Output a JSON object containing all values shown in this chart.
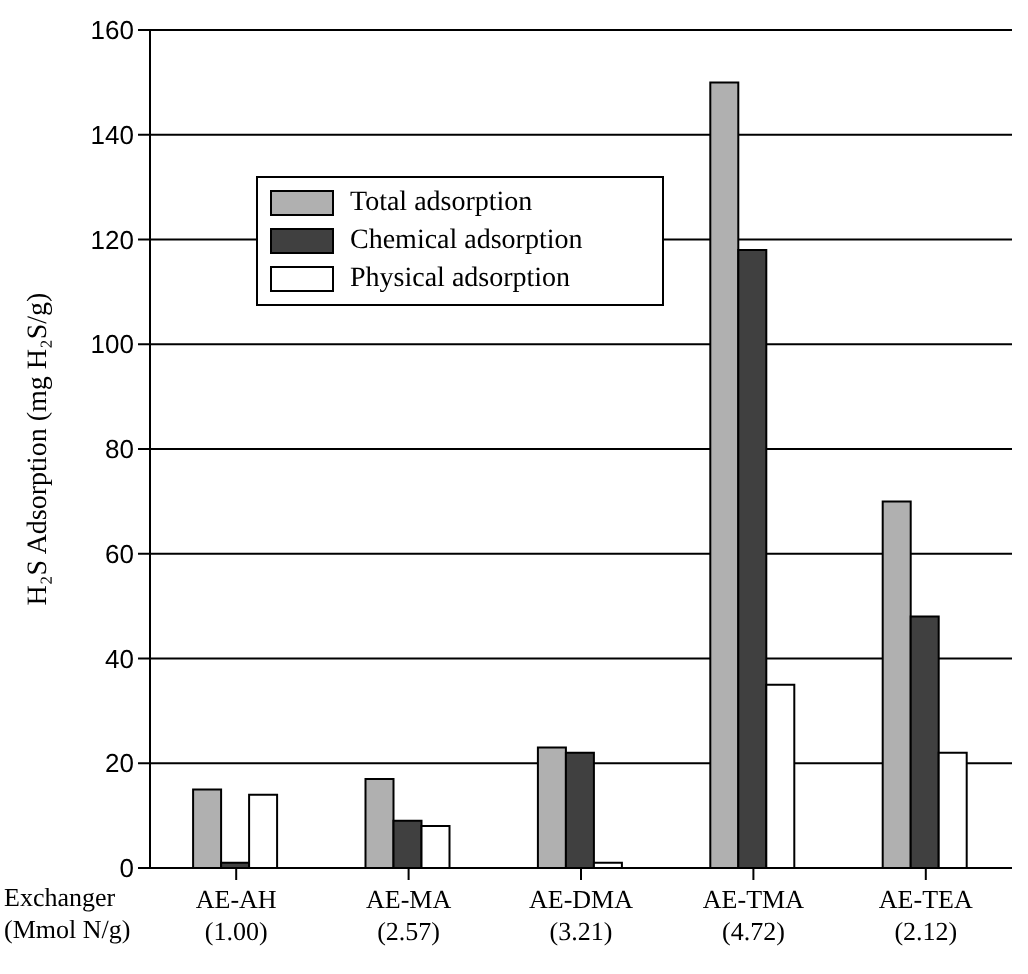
{
  "chart_data": {
    "type": "bar",
    "xlabel": "Exchanger (Mmol N/g)",
    "ylabel": "H₂S Adsorption (mg H₂S/g)",
    "categories": [
      "AE-AH (1.00)",
      "AE-MA (2.57)",
      "AE-DMA (3.21)",
      "AE-TMA (4.72)",
      "AE-TEA (2.12)"
    ],
    "series": [
      {
        "name": "Total adsorption",
        "color": "#b0b0b0",
        "values": [
          15,
          17,
          23,
          150,
          70
        ]
      },
      {
        "name": "Chemical adsorption",
        "color": "#404040",
        "values": [
          1,
          9,
          22,
          118,
          48
        ]
      },
      {
        "name": "Physical adsorption",
        "color": "#ffffff",
        "values": [
          14,
          8,
          1,
          35,
          22
        ]
      }
    ],
    "ylim": [
      0,
      160
    ],
    "yticks": [
      0,
      20,
      40,
      60,
      80,
      100,
      120,
      140,
      160
    ],
    "grid": "y",
    "legend": "top left"
  }
}
